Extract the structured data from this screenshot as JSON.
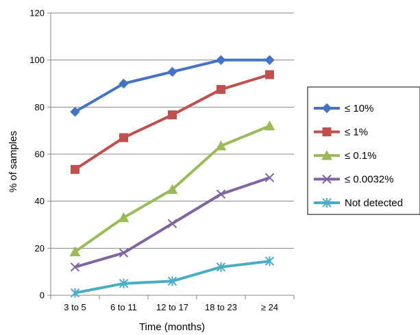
{
  "chart_data": {
    "type": "line",
    "categories": [
      "3 to 5",
      "6 to 11",
      "12 to 17",
      "18 to 23",
      "≥ 24"
    ],
    "xlabel": "Time (months)",
    "ylabel": "% of samples",
    "ylim": [
      0,
      120
    ],
    "yticks": [
      0,
      20,
      40,
      60,
      80,
      100,
      120
    ],
    "grid": true,
    "legend_position": "right",
    "series": [
      {
        "name": "≤ 10%",
        "color": "#4472C4",
        "marker": "diamond",
        "values": [
          78,
          90,
          95,
          100,
          100
        ]
      },
      {
        "name": "≤ 1%",
        "color": "#C0504D",
        "marker": "square",
        "values": [
          53.5,
          67,
          76.7,
          87.5,
          93.8
        ]
      },
      {
        "name": "≤ 0.1%",
        "color": "#9BBB59",
        "marker": "triangle",
        "values": [
          18.5,
          33,
          45,
          63.5,
          72
        ]
      },
      {
        "name": "≤ 0.0032%",
        "color": "#8064A2",
        "marker": "x",
        "values": [
          12,
          18,
          30.5,
          43,
          50
        ]
      },
      {
        "name": "Not detected",
        "color": "#4BACC6",
        "marker": "star",
        "values": [
          1,
          5,
          6,
          12,
          14.5
        ]
      }
    ]
  }
}
